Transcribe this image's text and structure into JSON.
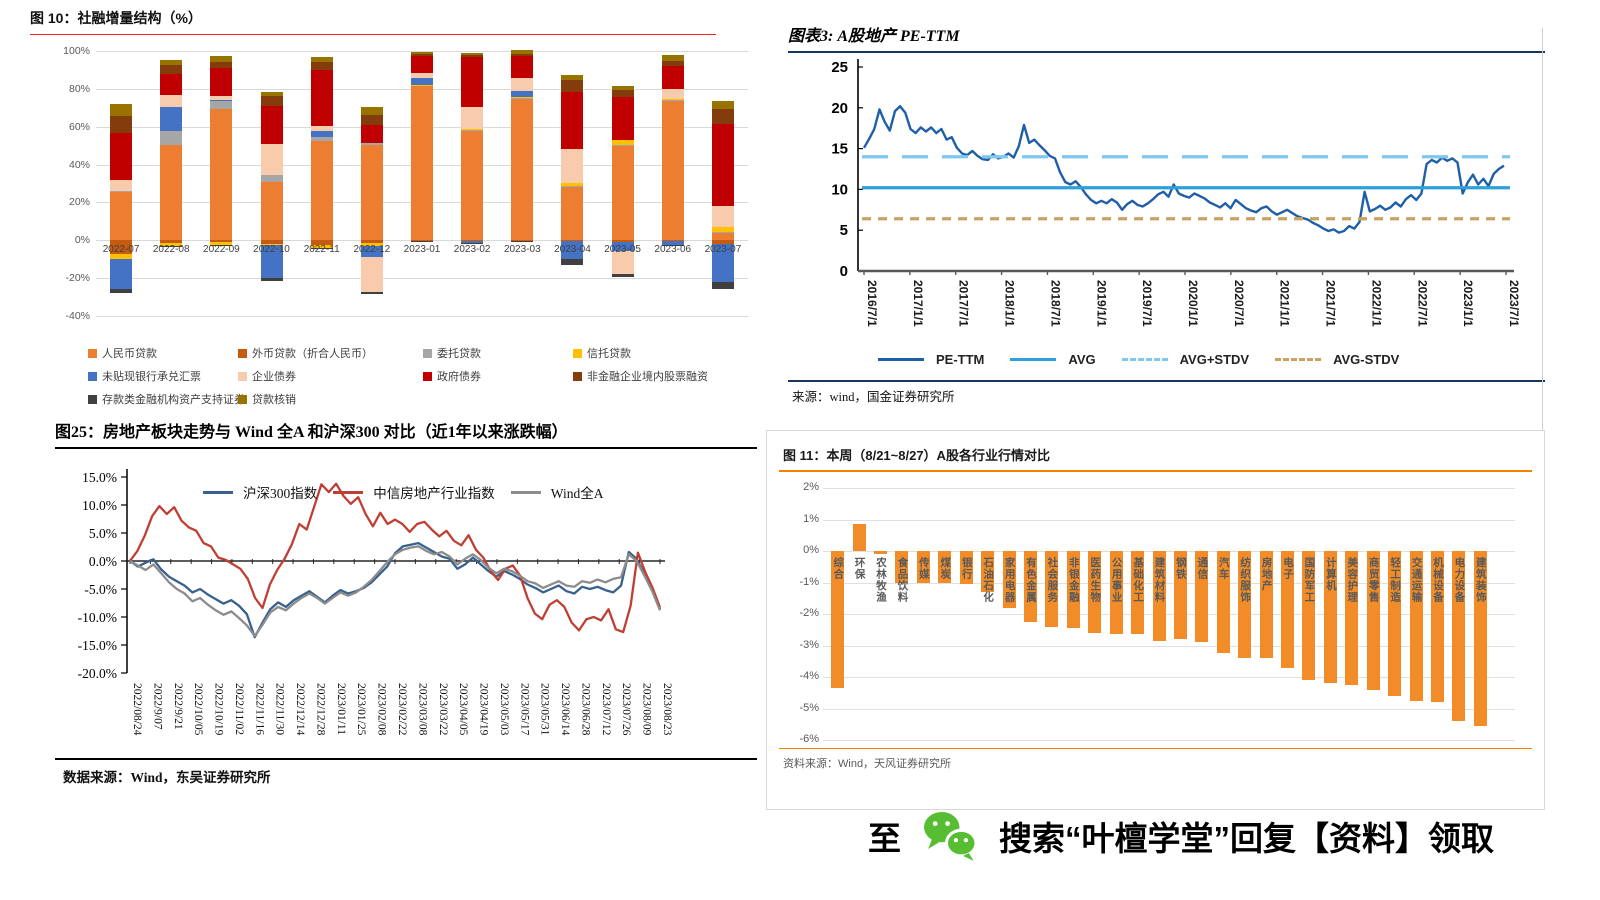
{
  "footer": {
    "prefix": "至",
    "suffix": "搜索“叶檀学堂”回复【资料】领取",
    "icon": "wechat-icon",
    "icon_color": "#57be33"
  },
  "chart_data": [
    {
      "id": "sofi",
      "type": "bar",
      "subtype": "stacked",
      "title": "图 10：社融增量结构（%）",
      "accent_color": "#ff2020",
      "ylim": [
        -40,
        100
      ],
      "y_ticks": [
        "100%",
        "80%",
        "60%",
        "40%",
        "20%",
        "0%",
        "-20%",
        "-40%"
      ],
      "grid": true,
      "categories": [
        "2022-07",
        "2022-08",
        "2022-09",
        "2022-10",
        "2022-11",
        "2022-12",
        "2023-01",
        "2023-02",
        "2023-03",
        "2023-04",
        "2023-05",
        "2023-06",
        "2023-07"
      ],
      "series": [
        {
          "name": "人民币贷款",
          "color": "#ed7d31",
          "values": [
            25.5,
            50.5,
            69.5,
            31,
            52.5,
            50.5,
            81.5,
            58,
            75,
            28.5,
            50,
            74,
            4
          ]
        },
        {
          "name": "外币贷款（折合人民币）",
          "color": "#c55a11",
          "values": [
            -7.4,
            -1.5,
            -1,
            -2,
            -2.3,
            -1.5,
            -0.5,
            -0.3,
            -0.3,
            -0.5,
            -0.8,
            -0.5,
            -2
          ]
        },
        {
          "name": "委托贷款",
          "color": "#a6a6a6",
          "values": [
            0.5,
            7,
            4,
            3.5,
            2,
            1,
            0.3,
            0.3,
            0.3,
            0.3,
            0.3,
            0.3,
            0.3
          ]
        },
        {
          "name": "信托贷款",
          "color": "#ffc000",
          "values": [
            -2.5,
            -1.7,
            -1.3,
            -0.5,
            -1.7,
            -1.7,
            0.3,
            0.3,
            0.3,
            1.5,
            2.5,
            0.3,
            2.5
          ]
        },
        {
          "name": "未贴现银行承兑汇票",
          "color": "#4472c4",
          "values": [
            -15.6,
            13,
            0.5,
            -17.5,
            3,
            -5.5,
            3.5,
            -1.2,
            3.5,
            -9.4,
            -5,
            -1.9,
            -20
          ]
        },
        {
          "name": "企业债券",
          "color": "#f8cbad",
          "values": [
            6,
            6,
            2,
            16.5,
            3,
            -18.5,
            3,
            12,
            6.5,
            18,
            -12,
            5.5,
            11.5
          ]
        },
        {
          "name": "政府债券",
          "color": "#c00000",
          "values": [
            24.5,
            11.5,
            15,
            20,
            29.5,
            9.5,
            8.5,
            26,
            11.5,
            30,
            23,
            12,
            43
          ]
        },
        {
          "name": "非金融企业境内股票融资",
          "color": "#843c0c",
          "values": [
            9,
            4.5,
            3,
            5,
            4,
            5,
            1.5,
            1.5,
            1.5,
            6.5,
            3.5,
            2.5,
            8
          ]
        },
        {
          "name": "存款类金融机构资产支持证券",
          "color": "#404040",
          "values": [
            -2.4,
            -0.3,
            -0.3,
            -1.5,
            -0.3,
            -1.2,
            -0.3,
            -0.3,
            -0.5,
            -2.9,
            -1.4,
            -0.3,
            -3.5
          ]
        },
        {
          "name": "贷款核销",
          "color": "#997300",
          "values": [
            6.5,
            2.5,
            3.5,
            2.5,
            3,
            4.5,
            1,
            1,
            2,
            2.5,
            2,
            3.5,
            4.5
          ]
        }
      ]
    },
    {
      "id": "pe-ttm",
      "type": "line",
      "title": "图表3: A股地产 PE-TTM",
      "source": "来源：wind，国金证券研究所",
      "accent_color": "#17375e",
      "ylim": [
        0,
        25
      ],
      "y_ticks": [
        0,
        5,
        10,
        15,
        20,
        25
      ],
      "grid": false,
      "legend_position": "bottom",
      "x_labels": [
        "2016/7/1",
        "2017/1/1",
        "2017/7/1",
        "2018/1/1",
        "2018/7/1",
        "2019/1/1",
        "2019/7/1",
        "2020/1/1",
        "2020/7/1",
        "2021/1/1",
        "2021/7/1",
        "2022/1/1",
        "2022/7/1",
        "2023/1/1",
        "2023/7/1"
      ],
      "series": [
        {
          "name": "PE-TTM",
          "color": "#1f5fa8",
          "style": "solid",
          "values": [
            15.1,
            16.2,
            17.4,
            19.8,
            18.3,
            17.2,
            19.6,
            20.2,
            19.4,
            17.4,
            16.9,
            17.6,
            17.1,
            17.6,
            16.9,
            17.4,
            16.1,
            16.4,
            15.1,
            14.4,
            14.2,
            14.7,
            14.1,
            13.7,
            13.6,
            14.3,
            13.8,
            14.0,
            14.4,
            13.9,
            15.3,
            17.9,
            15.7,
            16.1,
            15.4,
            14.8,
            14.1,
            13.8,
            12.1,
            10.9,
            10.6,
            11.0,
            10.3,
            9.4,
            8.7,
            8.3,
            8.6,
            8.3,
            8.8,
            8.4,
            7.5,
            8.2,
            8.6,
            8.1,
            7.9,
            8.3,
            8.8,
            9.4,
            9.7,
            9.1,
            10.6,
            9.5,
            9.2,
            9.0,
            9.5,
            9.2,
            8.9,
            8.4,
            8.1,
            7.8,
            8.3,
            7.7,
            8.7,
            8.2,
            7.7,
            7.4,
            7.2,
            7.7,
            7.9,
            7.3,
            6.9,
            7.2,
            7.5,
            7.1,
            6.7,
            6.5,
            6.3,
            5.9,
            5.6,
            5.2,
            4.9,
            5.1,
            4.7,
            4.9,
            5.5,
            5.2,
            6.0,
            9.7,
            7.3,
            7.6,
            8.0,
            7.5,
            7.8,
            8.4,
            7.9,
            8.8,
            9.3,
            8.7,
            9.5,
            13.1,
            13.6,
            13.3,
            13.9,
            13.5,
            13.8,
            13.3,
            9.5,
            10.9,
            11.8,
            10.6,
            11.3,
            10.4,
            11.9,
            12.5,
            12.9
          ]
        },
        {
          "name": "AVG",
          "color": "#2e9fda",
          "style": "solid",
          "value": 10.2
        },
        {
          "name": "AVG+STDV",
          "color": "#7ec8ef",
          "style": "dash-long",
          "value": 14.0
        },
        {
          "name": "AVG-STDV",
          "color": "#c9a35e",
          "style": "dash",
          "value": 6.4
        }
      ]
    },
    {
      "id": "realestate-compare",
      "type": "line",
      "title": "图25：房地产板块走势与 Wind 全A 和沪深300 对比（近1年以来涨跌幅）",
      "source": "数据来源：Wind，东吴证券研究所",
      "ylim": [
        -20,
        15
      ],
      "y_ticks": [
        "15.0%",
        "10.0%",
        "5.0%",
        "0.0%",
        "-5.0%",
        "-10.0%",
        "-15.0%",
        "-20.0%"
      ],
      "grid": false,
      "legend_position": "top",
      "x_labels": [
        "2022/08/24",
        "2022/9/07",
        "2022/9/21",
        "2022/10/05",
        "2022/10/19",
        "2022/11/02",
        "2022/11/16",
        "2022/11/30",
        "2022/12/14",
        "2022/12/28",
        "2023/01/11",
        "2023/01/25",
        "2023/02/08",
        "2023/02/22",
        "2023/03/08",
        "2023/03/22",
        "2023/04/05",
        "2023/04/19",
        "2023/05/03",
        "2023/05/17",
        "2023/05/31",
        "2023/06/14",
        "2023/06/28",
        "2023/07/12",
        "2023/07/26",
        "2023/08/09",
        "2023/08/23"
      ],
      "series": [
        {
          "name": "沪深300指数",
          "color": "#38618e",
          "values": [
            0,
            -1.0,
            -0.3,
            0.3,
            -1.5,
            -2.8,
            -3.6,
            -4.4,
            -5.6,
            -5.0,
            -6.0,
            -6.8,
            -7.6,
            -7.0,
            -8.0,
            -9.5,
            -13.6,
            -11.0,
            -8.6,
            -7.4,
            -8.2,
            -7.0,
            -6.2,
            -5.4,
            -6.4,
            -7.4,
            -6.2,
            -5.2,
            -5.8,
            -5.4,
            -4.8,
            -3.8,
            -2.4,
            -1.0,
            1.4,
            2.6,
            2.9,
            3.2,
            2.4,
            1.6,
            0.8,
            0.4,
            -1.4,
            -0.6,
            0.6,
            -0.6,
            -1.8,
            -2.8,
            -1.8,
            -2.4,
            -3.2,
            -4.2,
            -4.8,
            -5.6,
            -5.0,
            -4.4,
            -5.4,
            -5.8,
            -4.6,
            -5.0,
            -4.6,
            -5.2,
            -5.6,
            -4.4,
            1.6,
            0.4,
            -2.4,
            -5.0,
            -8.6
          ]
        },
        {
          "name": "中信房地产行业指数",
          "color": "#bf3f34",
          "values": [
            0,
            1.8,
            4.5,
            8.0,
            9.8,
            8.4,
            9.6,
            7.2,
            6.0,
            5.4,
            3.2,
            2.6,
            0.6,
            0.2,
            -0.6,
            -1.4,
            -3.2,
            -6.6,
            -8.4,
            -4.2,
            -1.6,
            0.4,
            3.0,
            6.6,
            5.6,
            9.6,
            13.7,
            12.3,
            13.8,
            11.6,
            10.2,
            11.4,
            8.4,
            6.2,
            8.6,
            6.6,
            7.4,
            6.6,
            5.2,
            6.6,
            7.0,
            5.6,
            4.4,
            5.4,
            3.6,
            2.8,
            4.6,
            2.0,
            0.6,
            -1.8,
            -3.4,
            -1.4,
            -0.8,
            -2.6,
            -6.6,
            -9.4,
            -10.4,
            -7.8,
            -7.0,
            -8.2,
            -11.0,
            -12.4,
            -10.4,
            -10.0,
            -10.6,
            -8.6,
            -12.2,
            -12.7,
            -8.0,
            1.5,
            -2.0,
            -4.8,
            -8.3
          ]
        },
        {
          "name": "Wind全A",
          "color": "#8c8c8c",
          "values": [
            0,
            -0.8,
            -1.6,
            -0.6,
            -2.2,
            -3.8,
            -5.0,
            -5.8,
            -7.2,
            -6.6,
            -7.8,
            -8.8,
            -9.6,
            -9.0,
            -10.2,
            -11.5,
            -13.4,
            -11.4,
            -9.2,
            -8.2,
            -8.8,
            -7.6,
            -6.6,
            -5.8,
            -6.6,
            -7.6,
            -6.6,
            -5.6,
            -6.2,
            -5.6,
            -4.6,
            -3.4,
            -1.8,
            -0.2,
            1.2,
            2.0,
            2.4,
            2.6,
            1.8,
            1.2,
            1.6,
            0.8,
            -0.6,
            0.4,
            1.2,
            0.2,
            -1.2,
            -2.2,
            -1.4,
            -1.8,
            -2.6,
            -3.6,
            -4.0,
            -4.8,
            -4.2,
            -3.6,
            -4.4,
            -4.6,
            -3.6,
            -3.9,
            -3.3,
            -3.8,
            -3.2,
            -2.9,
            1.2,
            0.0,
            -2.6,
            -5.4,
            -8.8
          ]
        }
      ]
    },
    {
      "id": "industry-week",
      "type": "bar",
      "title": "图 11：本周（8/21~8/27）A股各行业行情对比",
      "source": "资料来源：Wind，天风证券研究所",
      "accent_color": "#f08300",
      "bar_color": "#f28c28",
      "ylim": [
        -6,
        2
      ],
      "y_ticks": [
        "2%",
        "1%",
        "0%",
        "-1%",
        "-2%",
        "-3%",
        "-4%",
        "-5%",
        "-6%"
      ],
      "grid": true,
      "categories": [
        "综合",
        "环保",
        "农林牧渔",
        "食品饮料",
        "传媒",
        "煤炭",
        "银行",
        "石油石化",
        "家用电器",
        "有色金属",
        "社会服务",
        "非银金融",
        "医药生物",
        "公用事业",
        "基础化工",
        "建筑材料",
        "钢铁",
        "通信",
        "汽车",
        "纺织服饰",
        "房地产",
        "电子",
        "国防军工",
        "计算机",
        "美容护理",
        "商贸零售",
        "轻工制造",
        "交通运输",
        "机械设备",
        "电力设备",
        "建筑装饰"
      ],
      "values": [
        -4.35,
        0.85,
        -0.1,
        -1.0,
        -1.0,
        -1.0,
        -1.05,
        -1.3,
        -1.8,
        -2.25,
        -2.4,
        -2.45,
        -2.6,
        -2.65,
        -2.65,
        -2.85,
        -2.8,
        -2.9,
        -3.25,
        -3.4,
        -3.4,
        -3.7,
        -4.1,
        -4.2,
        -4.25,
        -4.4,
        -4.6,
        -4.75,
        -4.8,
        -5.4,
        -5.55
      ]
    }
  ]
}
